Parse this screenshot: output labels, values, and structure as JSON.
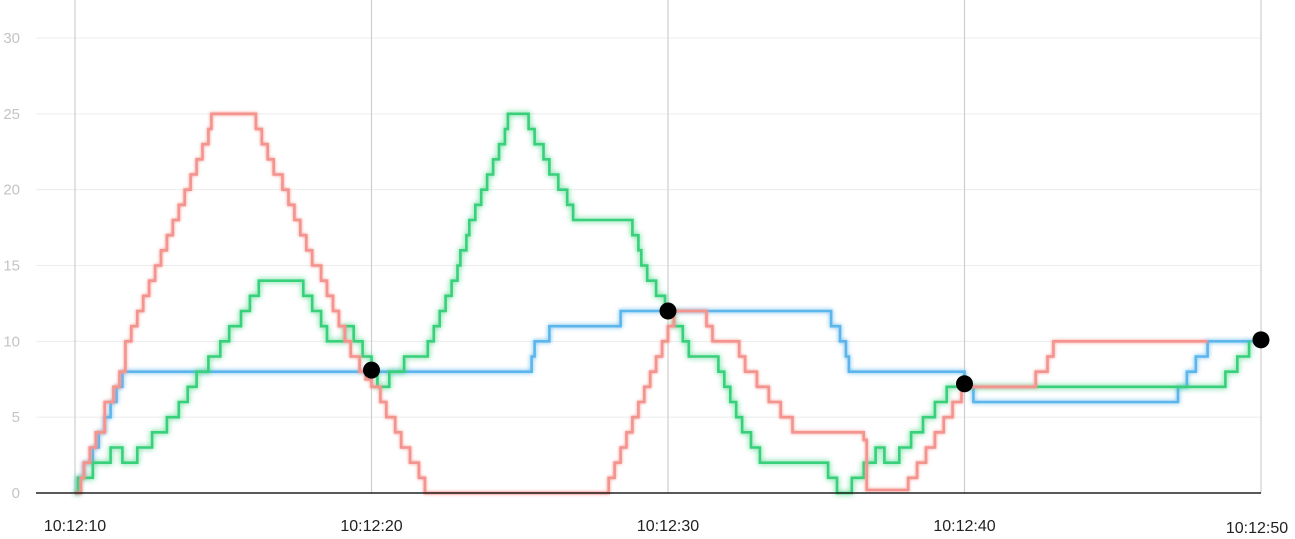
{
  "chart_data": {
    "type": "line",
    "step": true,
    "title": "",
    "xlabel": "",
    "ylabel": "",
    "ylim": [
      0,
      30
    ],
    "yticks": [
      0,
      5,
      10,
      15,
      20,
      25,
      30
    ],
    "xlim": [
      "10:12:10",
      "10:12:50"
    ],
    "xtick_labels": [
      "10:12:10",
      "10:12:20",
      "10:12:30",
      "10:12:40",
      "10:12:50"
    ],
    "grid": "horizontal gridlines at y ticks, vertical gridlines at x ticks",
    "colors": {
      "red": "#f4948f",
      "green": "#37d07a",
      "blue": "#5cb6ec",
      "marker": "#000000",
      "axis": "#222222"
    },
    "series": [
      {
        "color": "#f4948f",
        "points": [
          [
            "10:12:10.0",
            0
          ],
          [
            "10:12:10.2",
            1
          ],
          [
            "10:12:10.3",
            2
          ],
          [
            "10:12:10.5",
            3
          ],
          [
            "10:12:10.7",
            4
          ],
          [
            "10:12:11.0",
            6
          ],
          [
            "10:12:11.3",
            7
          ],
          [
            "10:12:11.5",
            8
          ],
          [
            "10:12:11.7",
            10
          ],
          [
            "10:12:11.9",
            11
          ],
          [
            "10:12:12.1",
            12
          ],
          [
            "10:12:12.3",
            13
          ],
          [
            "10:12:12.5",
            14
          ],
          [
            "10:12:12.7",
            15
          ],
          [
            "10:12:12.9",
            16
          ],
          [
            "10:12:13.1",
            17
          ],
          [
            "10:12:13.3",
            18
          ],
          [
            "10:12:13.5",
            19
          ],
          [
            "10:12:13.7",
            20
          ],
          [
            "10:12:13.9",
            21
          ],
          [
            "10:12:14.1",
            22
          ],
          [
            "10:12:14.3",
            23
          ],
          [
            "10:12:14.5",
            24
          ],
          [
            "10:12:14.6",
            25
          ],
          [
            "10:12:16.1",
            24
          ],
          [
            "10:12:16.3",
            23
          ],
          [
            "10:12:16.5",
            22
          ],
          [
            "10:12:16.7",
            21
          ],
          [
            "10:12:17.0",
            20
          ],
          [
            "10:12:17.2",
            19
          ],
          [
            "10:12:17.4",
            18
          ],
          [
            "10:12:17.6",
            17
          ],
          [
            "10:12:17.8",
            16
          ],
          [
            "10:12:18.0",
            15
          ],
          [
            "10:12:18.3",
            14
          ],
          [
            "10:12:18.5",
            13
          ],
          [
            "10:12:18.7",
            12
          ],
          [
            "10:12:18.9",
            11
          ],
          [
            "10:12:19.1",
            10
          ],
          [
            "10:12:19.3",
            9
          ],
          [
            "10:12:19.6",
            8
          ],
          [
            "10:12:19.8",
            7.5
          ],
          [
            "10:12:20.0",
            7
          ],
          [
            "10:12:20.3",
            6
          ],
          [
            "10:12:20.5",
            5
          ],
          [
            "10:12:20.8",
            4
          ],
          [
            "10:12:21.0",
            3
          ],
          [
            "10:12:21.3",
            2
          ],
          [
            "10:12:21.6",
            1
          ],
          [
            "10:12:21.8",
            0
          ],
          [
            "10:12:28.0",
            1
          ],
          [
            "10:12:28.2",
            2
          ],
          [
            "10:12:28.4",
            3
          ],
          [
            "10:12:28.6",
            4
          ],
          [
            "10:12:28.8",
            5
          ],
          [
            "10:12:29.0",
            6
          ],
          [
            "10:12:29.2",
            7
          ],
          [
            "10:12:29.4",
            8
          ],
          [
            "10:12:29.6",
            9
          ],
          [
            "10:12:29.8",
            10
          ],
          [
            "10:12:30.0",
            11
          ],
          [
            "10:12:30.2",
            12
          ],
          [
            "10:12:31.3",
            11
          ],
          [
            "10:12:31.5",
            10
          ],
          [
            "10:12:32.4",
            9
          ],
          [
            "10:12:32.6",
            8
          ],
          [
            "10:12:33.0",
            7
          ],
          [
            "10:12:33.4",
            6
          ],
          [
            "10:12:33.8",
            5
          ],
          [
            "10:12:34.2",
            4
          ],
          [
            "10:12:35.3",
            4
          ],
          [
            "10:12:35.5",
            4
          ],
          [
            "10:12:36.6",
            3.5
          ],
          [
            "10:12:36.7",
            0.2
          ],
          [
            "10:12:38.0",
            0.2
          ],
          [
            "10:12:38.1",
            1
          ],
          [
            "10:12:38.4",
            2
          ],
          [
            "10:12:38.7",
            3
          ],
          [
            "10:12:39.0",
            4
          ],
          [
            "10:12:39.3",
            5
          ],
          [
            "10:12:39.6",
            6
          ],
          [
            "10:12:39.9",
            7
          ],
          [
            "10:12:42.3",
            7
          ],
          [
            "10:12:42.4",
            8
          ],
          [
            "10:12:42.8",
            9
          ],
          [
            "10:12:43.0",
            10
          ],
          [
            "10:12:48.2",
            10
          ]
        ]
      },
      {
        "color": "#37d07a",
        "points": [
          [
            "10:12:10.0",
            0
          ],
          [
            "10:12:10.1",
            1
          ],
          [
            "10:12:10.6",
            2
          ],
          [
            "10:12:11.2",
            3
          ],
          [
            "10:12:11.6",
            2
          ],
          [
            "10:12:12.1",
            3
          ],
          [
            "10:12:12.6",
            4
          ],
          [
            "10:12:13.1",
            5
          ],
          [
            "10:12:13.5",
            6
          ],
          [
            "10:12:13.8",
            7
          ],
          [
            "10:12:14.1",
            8
          ],
          [
            "10:12:14.5",
            9
          ],
          [
            "10:12:14.9",
            10
          ],
          [
            "10:12:15.2",
            11
          ],
          [
            "10:12:15.6",
            12
          ],
          [
            "10:12:15.9",
            13
          ],
          [
            "10:12:16.2",
            14
          ],
          [
            "10:12:17.7",
            13
          ],
          [
            "10:12:18.0",
            12
          ],
          [
            "10:12:18.3",
            11
          ],
          [
            "10:12:18.5",
            10
          ],
          [
            "10:12:19.1",
            11
          ],
          [
            "10:12:19.4",
            10
          ],
          [
            "10:12:19.7",
            9
          ],
          [
            "10:12:20.0",
            8
          ],
          [
            "10:12:20.2",
            7
          ],
          [
            "10:12:20.6",
            8
          ],
          [
            "10:12:21.1",
            9
          ],
          [
            "10:12:21.9",
            10
          ],
          [
            "10:12:22.1",
            11
          ],
          [
            "10:12:22.3",
            12
          ],
          [
            "10:12:22.5",
            13
          ],
          [
            "10:12:22.7",
            14
          ],
          [
            "10:12:22.9",
            15
          ],
          [
            "10:12:23.0",
            16
          ],
          [
            "10:12:23.2",
            17
          ],
          [
            "10:12:23.3",
            18
          ],
          [
            "10:12:23.5",
            19
          ],
          [
            "10:12:23.7",
            20
          ],
          [
            "10:12:23.9",
            21
          ],
          [
            "10:12:24.1",
            22
          ],
          [
            "10:12:24.3",
            23
          ],
          [
            "10:12:24.5",
            24
          ],
          [
            "10:12:24.6",
            25
          ],
          [
            "10:12:25.3",
            24
          ],
          [
            "10:12:25.5",
            23
          ],
          [
            "10:12:25.8",
            22
          ],
          [
            "10:12:26.0",
            21
          ],
          [
            "10:12:26.3",
            20
          ],
          [
            "10:12:26.6",
            19
          ],
          [
            "10:12:26.8",
            18
          ],
          [
            "10:12:28.8",
            17
          ],
          [
            "10:12:29.0",
            16
          ],
          [
            "10:12:29.1",
            15
          ],
          [
            "10:12:29.3",
            14
          ],
          [
            "10:12:29.6",
            13
          ],
          [
            "10:12:29.9",
            12
          ],
          [
            "10:12:30.2",
            11
          ],
          [
            "10:12:30.5",
            10
          ],
          [
            "10:12:30.7",
            9
          ],
          [
            "10:12:31.7",
            8
          ],
          [
            "10:12:31.9",
            7
          ],
          [
            "10:12:32.1",
            6
          ],
          [
            "10:12:32.3",
            5
          ],
          [
            "10:12:32.5",
            4
          ],
          [
            "10:12:32.8",
            3
          ],
          [
            "10:12:33.1",
            2
          ],
          [
            "10:12:35.4",
            1
          ],
          [
            "10:12:35.7",
            0
          ],
          [
            "10:12:36.2",
            1
          ],
          [
            "10:12:36.6",
            2
          ],
          [
            "10:12:37.0",
            3
          ],
          [
            "10:12:37.3",
            2
          ],
          [
            "10:12:37.8",
            3
          ],
          [
            "10:12:38.2",
            4
          ],
          [
            "10:12:38.6",
            5
          ],
          [
            "10:12:39.0",
            6
          ],
          [
            "10:12:39.4",
            7
          ],
          [
            "10:12:39.9",
            7
          ],
          [
            "10:12:48.8",
            8
          ],
          [
            "10:12:49.2",
            9
          ],
          [
            "10:12:49.6",
            10
          ]
        ]
      },
      {
        "color": "#5cb6ec",
        "points": [
          [
            "10:12:10.0",
            0
          ],
          [
            "10:12:10.1",
            1
          ],
          [
            "10:12:10.3",
            2
          ],
          [
            "10:12:10.6",
            3
          ],
          [
            "10:12:10.8",
            4
          ],
          [
            "10:12:11.0",
            5
          ],
          [
            "10:12:11.2",
            6
          ],
          [
            "10:12:11.4",
            7
          ],
          [
            "10:12:11.6",
            8
          ],
          [
            "10:12:25.4",
            9
          ],
          [
            "10:12:25.5",
            10
          ],
          [
            "10:12:26.0",
            11
          ],
          [
            "10:12:28.4",
            12
          ],
          [
            "10:12:35.5",
            11
          ],
          [
            "10:12:35.8",
            10
          ],
          [
            "10:12:36.0",
            9
          ],
          [
            "10:12:36.1",
            8
          ],
          [
            "10:12:40.0",
            7
          ],
          [
            "10:12:40.3",
            6
          ],
          [
            "10:12:47.2",
            7
          ],
          [
            "10:12:47.5",
            8
          ],
          [
            "10:12:47.8",
            9
          ],
          [
            "10:12:48.2",
            10
          ],
          [
            "10:12:50.0",
            10
          ]
        ]
      }
    ],
    "markers": [
      [
        "10:12:20.0",
        8.1
      ],
      [
        "10:12:30.0",
        12.0
      ],
      [
        "10:12:40.0",
        7.2
      ],
      [
        "10:12:50.0",
        10.1
      ]
    ]
  }
}
